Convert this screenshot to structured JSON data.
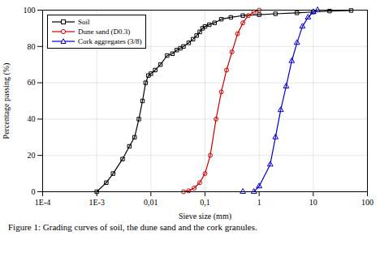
{
  "chart_data": {
    "type": "line",
    "xlabel": "Sieve size (mm)",
    "ylabel": "Percentage passing (%)",
    "caption": "Figure 1: Grading curves of soil, the dune sand and the cork granules.",
    "log": "x",
    "grid": true,
    "legend": "upper left",
    "xlim": [
      0.0001,
      100
    ],
    "ylim": [
      0,
      100
    ],
    "xticks": [
      {
        "value": 0.0001,
        "label": "1E-4"
      },
      {
        "value": 0.001,
        "label": "1E-3"
      },
      {
        "value": 0.01,
        "label": "0,01"
      },
      {
        "value": 0.1,
        "label": "0,1"
      },
      1,
      10,
      100
    ],
    "yticks": [
      0,
      20,
      40,
      60,
      80,
      100
    ],
    "series": [
      {
        "name": "Soil",
        "color": "#000000",
        "marker": "square",
        "x": [
          0.001,
          0.0015,
          0.002,
          0.003,
          0.004,
          0.005,
          0.006,
          0.007,
          0.008,
          0.009,
          0.01,
          0.012,
          0.015,
          0.02,
          0.025,
          0.03,
          0.035,
          0.04,
          0.05,
          0.06,
          0.07,
          0.08,
          0.09,
          0.1,
          0.12,
          0.15,
          0.2,
          0.3,
          0.5,
          1.0,
          2.0,
          5.0,
          10.0,
          20.0,
          50.0
        ],
        "values": [
          0,
          5,
          10,
          18,
          25,
          30,
          40,
          50,
          60,
          64,
          65,
          67,
          70,
          75,
          76,
          78,
          79,
          80,
          82,
          84,
          86,
          88,
          90,
          91,
          92,
          93,
          95,
          96,
          97,
          97.5,
          98,
          98.5,
          99,
          99.5,
          99.8
        ]
      },
      {
        "name": "Dune sand (D0.3)",
        "color": "#cc0000",
        "marker": "circle",
        "x": [
          0.04,
          0.05,
          0.063,
          0.08,
          0.1,
          0.125,
          0.16,
          0.2,
          0.25,
          0.315,
          0.4,
          0.5,
          0.63,
          0.8,
          1.0
        ],
        "values": [
          0,
          0.5,
          2,
          5,
          10,
          20,
          40,
          55,
          67,
          77,
          87,
          93,
          97,
          99,
          100
        ]
      },
      {
        "name": "Cork aggregates (3/8)",
        "color": "#0000cc",
        "marker": "triangle",
        "x": [
          0.5,
          0.8,
          1.0,
          1.6,
          2.0,
          2.5,
          3.15,
          4.0,
          5.0,
          6.3,
          8.0,
          10.0,
          12.0
        ],
        "values": [
          0,
          0,
          3,
          15,
          30,
          45,
          58,
          72,
          82,
          91,
          96,
          99,
          100
        ]
      }
    ]
  }
}
